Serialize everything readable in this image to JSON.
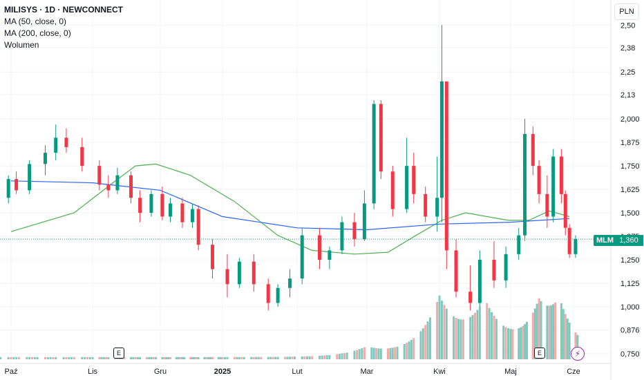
{
  "legend": {
    "title": "MILISYS · 1D · NEWCONNECT",
    "ma50": "MA (50, close, 0)",
    "ma200": "MA (200, close, 0)",
    "volume": "Wolumen"
  },
  "currency": "PLN",
  "last_price": {
    "ticker": "MLM",
    "value": "1,360"
  },
  "earnings_marker": "E",
  "event_icon": "lightning-icon",
  "colors": {
    "up": "#089981",
    "down": "#f23645",
    "ma50": "#4caf50",
    "ma200": "#2962ff",
    "vol_up": "#81c8be",
    "vol_down": "#f7a9a7",
    "grid": "#f0f3fa"
  },
  "chart_data": {
    "type": "candlestick",
    "title": "MILISYS · 1D · NEWCONNECT",
    "y_ticks": [
      "2,50",
      "2,38",
      "2,25",
      "2,13",
      "2,000",
      "1,875",
      "1,750",
      "1,625",
      "1,500",
      "1,375",
      "1,250",
      "1,125",
      "1,000",
      "0,876",
      "0,750"
    ],
    "y_range": [
      0.72,
      2.56
    ],
    "x_ticks": [
      "Paź",
      "Lis",
      "Gru",
      "2025",
      "Lut",
      "Mar",
      "Kwi",
      "Maj",
      "Cze"
    ],
    "grid": true,
    "series": [
      {
        "name": "MA (50, close, 0)",
        "type": "line",
        "points": [
          [
            "2024-10-01",
            1.4
          ],
          [
            "2024-10-25",
            1.5
          ],
          [
            "2024-11-10",
            1.66
          ],
          [
            "2024-11-20",
            1.75
          ],
          [
            "2024-11-29",
            1.76
          ],
          [
            "2024-12-16",
            1.7
          ],
          [
            "2025-01-06",
            1.56
          ],
          [
            "2025-01-24",
            1.38
          ],
          [
            "2025-02-07",
            1.3
          ],
          [
            "2025-02-24",
            1.28
          ],
          [
            "2025-03-10",
            1.29
          ],
          [
            "2025-03-22",
            1.38
          ],
          [
            "2025-04-02",
            1.46
          ],
          [
            "2025-04-12",
            1.5
          ],
          [
            "2025-04-30",
            1.46
          ],
          [
            "2025-05-10",
            1.46
          ],
          [
            "2025-05-20",
            1.51
          ],
          [
            "2025-05-30",
            1.48
          ]
        ]
      },
      {
        "name": "MA (200, close, 0)",
        "type": "line",
        "points": [
          [
            "2024-10-01",
            1.67
          ],
          [
            "2024-11-01",
            1.66
          ],
          [
            "2024-12-01",
            1.62
          ],
          [
            "2025-01-01",
            1.48
          ],
          [
            "2025-02-01",
            1.42
          ],
          [
            "2025-03-01",
            1.41
          ],
          [
            "2025-04-01",
            1.44
          ],
          [
            "2025-05-01",
            1.45
          ],
          [
            "2025-05-30",
            1.47
          ]
        ]
      },
      {
        "name": "Wolumen",
        "type": "volume",
        "peaks": [
          [
            "2025-03-01",
            0.5
          ],
          [
            "2025-04-01",
            3.0
          ],
          [
            "2025-04-20",
            2.7
          ],
          [
            "2025-05-15",
            2.2
          ],
          [
            "2025-05-25",
            2.5
          ]
        ]
      }
    ],
    "candles": [
      [
        "2024-09-30",
        1.58,
        1.7,
        1.55,
        1.68
      ],
      [
        "2024-10-03",
        1.68,
        1.72,
        1.6,
        1.62
      ],
      [
        "2024-10-08",
        1.62,
        1.78,
        1.6,
        1.76
      ],
      [
        "2024-10-14",
        1.76,
        1.86,
        1.7,
        1.82
      ],
      [
        "2024-10-18",
        1.82,
        1.97,
        1.78,
        1.9
      ],
      [
        "2024-10-22",
        1.9,
        1.95,
        1.82,
        1.85
      ],
      [
        "2024-10-28",
        1.85,
        1.9,
        1.72,
        1.75
      ],
      [
        "2024-11-04",
        1.75,
        1.78,
        1.62,
        1.65
      ],
      [
        "2024-11-08",
        1.65,
        1.7,
        1.58,
        1.62
      ],
      [
        "2024-11-12",
        1.62,
        1.74,
        1.6,
        1.7
      ],
      [
        "2024-11-18",
        1.7,
        1.72,
        1.55,
        1.58
      ],
      [
        "2024-11-22",
        1.58,
        1.62,
        1.45,
        1.5
      ],
      [
        "2024-11-27",
        1.5,
        1.62,
        1.48,
        1.6
      ],
      [
        "2024-12-02",
        1.6,
        1.64,
        1.46,
        1.48
      ],
      [
        "2024-12-06",
        1.48,
        1.58,
        1.45,
        1.55
      ],
      [
        "2024-12-12",
        1.55,
        1.58,
        1.42,
        1.45
      ],
      [
        "2024-12-17",
        1.45,
        1.55,
        1.42,
        1.52
      ],
      [
        "2024-12-20",
        1.52,
        1.54,
        1.3,
        1.33
      ],
      [
        "2024-12-27",
        1.33,
        1.36,
        1.15,
        1.2
      ],
      [
        "2025-01-03",
        1.2,
        1.28,
        1.05,
        1.12
      ],
      [
        "2025-01-08",
        1.12,
        1.26,
        1.1,
        1.24
      ],
      [
        "2025-01-14",
        1.24,
        1.28,
        1.08,
        1.12
      ],
      [
        "2025-01-20",
        1.12,
        1.15,
        0.98,
        1.02
      ],
      [
        "2025-01-24",
        1.02,
        1.12,
        1.0,
        1.1
      ],
      [
        "2025-01-29",
        1.1,
        1.2,
        1.05,
        1.15
      ],
      [
        "2025-02-03",
        1.15,
        1.42,
        1.12,
        1.38
      ],
      [
        "2025-02-10",
        1.38,
        1.42,
        1.2,
        1.25
      ],
      [
        "2025-02-14",
        1.25,
        1.32,
        1.2,
        1.3
      ],
      [
        "2025-02-19",
        1.3,
        1.48,
        1.28,
        1.45
      ],
      [
        "2025-02-24",
        1.45,
        1.5,
        1.32,
        1.36
      ],
      [
        "2025-02-28",
        1.36,
        1.62,
        1.35,
        1.55
      ],
      [
        "2025-03-04",
        1.55,
        2.1,
        1.52,
        2.08
      ],
      [
        "2025-03-07",
        2.08,
        2.1,
        1.68,
        1.72
      ],
      [
        "2025-03-12",
        1.72,
        1.75,
        1.48,
        1.52
      ],
      [
        "2025-03-18",
        1.52,
        1.9,
        1.5,
        1.75
      ],
      [
        "2025-03-21",
        1.75,
        1.82,
        1.55,
        1.6
      ],
      [
        "2025-03-26",
        1.6,
        1.64,
        1.45,
        1.48
      ],
      [
        "2025-03-31",
        1.48,
        1.8,
        1.4,
        1.58
      ],
      [
        "2025-04-02",
        1.58,
        2.5,
        1.45,
        2.2
      ],
      [
        "2025-04-04",
        2.2,
        2.2,
        1.2,
        1.3
      ],
      [
        "2025-04-08",
        1.3,
        1.36,
        1.05,
        1.08
      ],
      [
        "2025-04-14",
        1.08,
        1.22,
        0.98,
        1.02
      ],
      [
        "2025-04-18",
        1.02,
        1.3,
        1.0,
        1.25
      ],
      [
        "2025-04-24",
        1.25,
        1.35,
        1.1,
        1.14
      ],
      [
        "2025-04-29",
        1.14,
        1.32,
        1.1,
        1.28
      ],
      [
        "2025-05-05",
        1.28,
        1.42,
        1.25,
        1.38
      ],
      [
        "2025-05-08",
        1.38,
        2.0,
        1.35,
        1.92
      ],
      [
        "2025-05-12",
        1.92,
        1.96,
        1.7,
        1.75
      ],
      [
        "2025-05-15",
        1.75,
        1.78,
        1.55,
        1.6
      ],
      [
        "2025-05-19",
        1.6,
        1.7,
        1.42,
        1.48
      ],
      [
        "2025-05-22",
        1.48,
        1.84,
        1.45,
        1.8
      ],
      [
        "2025-05-26",
        1.8,
        1.84,
        1.55,
        1.6
      ],
      [
        "2025-05-28",
        1.6,
        1.62,
        1.38,
        1.42
      ],
      [
        "2025-05-30",
        1.42,
        1.44,
        1.26,
        1.28
      ],
      [
        "2025-06-02",
        1.28,
        1.38,
        1.26,
        1.36
      ]
    ],
    "last_value": 1.36
  }
}
